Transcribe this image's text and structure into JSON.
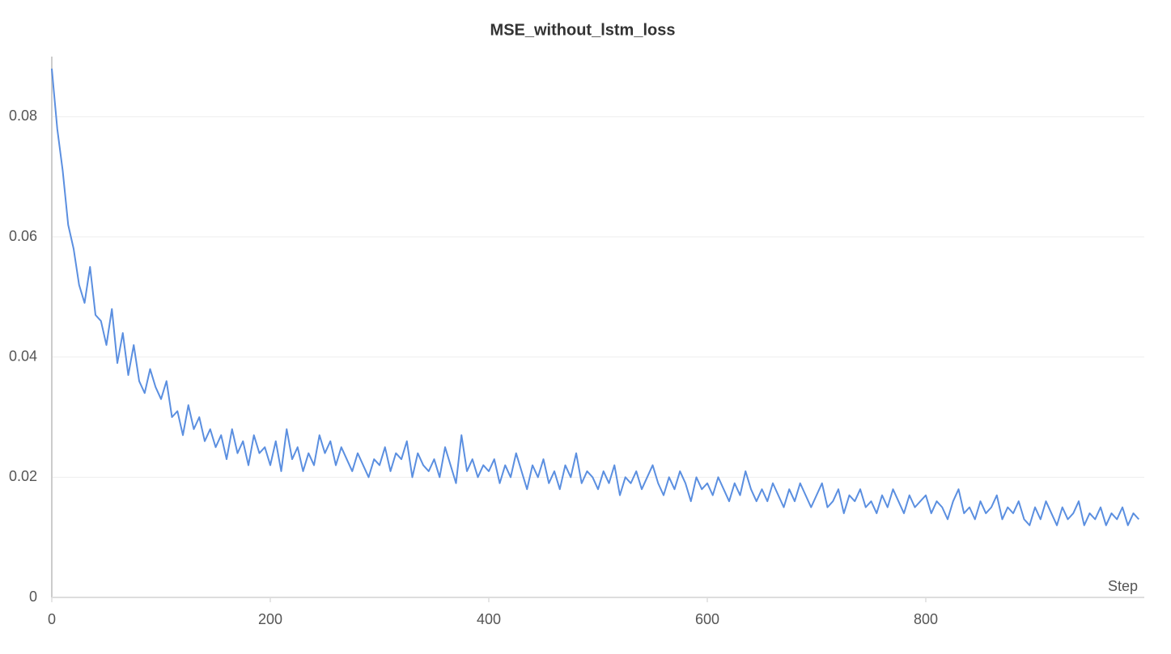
{
  "chart_data": {
    "type": "line",
    "title": "MSE_without_lstm_loss",
    "x_label": "Step",
    "x": [
      0,
      5,
      10,
      15,
      20,
      25,
      30,
      35,
      40,
      45,
      50,
      55,
      60,
      65,
      70,
      75,
      80,
      85,
      90,
      95,
      100,
      105,
      110,
      115,
      120,
      125,
      130,
      135,
      140,
      145,
      150,
      155,
      160,
      165,
      170,
      175,
      180,
      185,
      190,
      195,
      200,
      205,
      210,
      215,
      220,
      225,
      230,
      235,
      240,
      245,
      250,
      255,
      260,
      265,
      270,
      275,
      280,
      285,
      290,
      295,
      300,
      305,
      310,
      315,
      320,
      325,
      330,
      335,
      340,
      345,
      350,
      355,
      360,
      365,
      370,
      375,
      380,
      385,
      390,
      395,
      400,
      405,
      410,
      415,
      420,
      425,
      430,
      435,
      440,
      445,
      450,
      455,
      460,
      465,
      470,
      475,
      480,
      485,
      490,
      495,
      500,
      505,
      510,
      515,
      520,
      525,
      530,
      535,
      540,
      545,
      550,
      555,
      560,
      565,
      570,
      575,
      580,
      585,
      590,
      595,
      600,
      605,
      610,
      615,
      620,
      625,
      630,
      635,
      640,
      645,
      650,
      655,
      660,
      665,
      670,
      675,
      680,
      685,
      690,
      695,
      700,
      705,
      710,
      715,
      720,
      725,
      730,
      735,
      740,
      745,
      750,
      755,
      760,
      765,
      770,
      775,
      780,
      785,
      790,
      795,
      800,
      805,
      810,
      815,
      820,
      825,
      830,
      835,
      840,
      845,
      850,
      855,
      860,
      865,
      870,
      875,
      880,
      885,
      890,
      895,
      900,
      905,
      910,
      915,
      920,
      925,
      930,
      935,
      940,
      945,
      950,
      955,
      960,
      965,
      970,
      975,
      980,
      985,
      990,
      995
    ],
    "series": [
      {
        "name": "MSE_without_lstm_loss",
        "color": "#5b8fe0",
        "values": [
          0.088,
          0.078,
          0.071,
          0.062,
          0.058,
          0.052,
          0.049,
          0.055,
          0.047,
          0.046,
          0.042,
          0.048,
          0.039,
          0.044,
          0.037,
          0.042,
          0.036,
          0.034,
          0.038,
          0.035,
          0.033,
          0.036,
          0.03,
          0.031,
          0.027,
          0.032,
          0.028,
          0.03,
          0.026,
          0.028,
          0.025,
          0.027,
          0.023,
          0.028,
          0.024,
          0.026,
          0.022,
          0.027,
          0.024,
          0.025,
          0.022,
          0.026,
          0.021,
          0.028,
          0.023,
          0.025,
          0.021,
          0.024,
          0.022,
          0.027,
          0.024,
          0.026,
          0.022,
          0.025,
          0.023,
          0.021,
          0.024,
          0.022,
          0.02,
          0.023,
          0.022,
          0.025,
          0.021,
          0.024,
          0.023,
          0.026,
          0.02,
          0.024,
          0.022,
          0.021,
          0.023,
          0.02,
          0.025,
          0.022,
          0.019,
          0.027,
          0.021,
          0.023,
          0.02,
          0.022,
          0.021,
          0.023,
          0.019,
          0.022,
          0.02,
          0.024,
          0.021,
          0.018,
          0.022,
          0.02,
          0.023,
          0.019,
          0.021,
          0.018,
          0.022,
          0.02,
          0.024,
          0.019,
          0.021,
          0.02,
          0.018,
          0.021,
          0.019,
          0.022,
          0.017,
          0.02,
          0.019,
          0.021,
          0.018,
          0.02,
          0.022,
          0.019,
          0.017,
          0.02,
          0.018,
          0.021,
          0.019,
          0.016,
          0.02,
          0.018,
          0.019,
          0.017,
          0.02,
          0.018,
          0.016,
          0.019,
          0.017,
          0.021,
          0.018,
          0.016,
          0.018,
          0.016,
          0.019,
          0.017,
          0.015,
          0.018,
          0.016,
          0.019,
          0.017,
          0.015,
          0.017,
          0.019,
          0.015,
          0.016,
          0.018,
          0.014,
          0.017,
          0.016,
          0.018,
          0.015,
          0.016,
          0.014,
          0.017,
          0.015,
          0.018,
          0.016,
          0.014,
          0.017,
          0.015,
          0.016,
          0.017,
          0.014,
          0.016,
          0.015,
          0.013,
          0.016,
          0.018,
          0.014,
          0.015,
          0.013,
          0.016,
          0.014,
          0.015,
          0.017,
          0.013,
          0.015,
          0.014,
          0.016,
          0.013,
          0.012,
          0.015,
          0.013,
          0.016,
          0.014,
          0.012,
          0.015,
          0.013,
          0.014,
          0.016,
          0.012,
          0.014,
          0.013,
          0.015,
          0.012,
          0.014,
          0.013,
          0.015,
          0.012,
          0.014,
          0.013
        ]
      }
    ],
    "xlim": [
      0,
      1000
    ],
    "xticks": [
      0,
      200,
      400,
      600,
      800
    ],
    "ylim": [
      0,
      0.09
    ],
    "yticks": [
      0,
      0.02,
      0.04,
      0.06,
      0.08
    ],
    "grid": true
  }
}
